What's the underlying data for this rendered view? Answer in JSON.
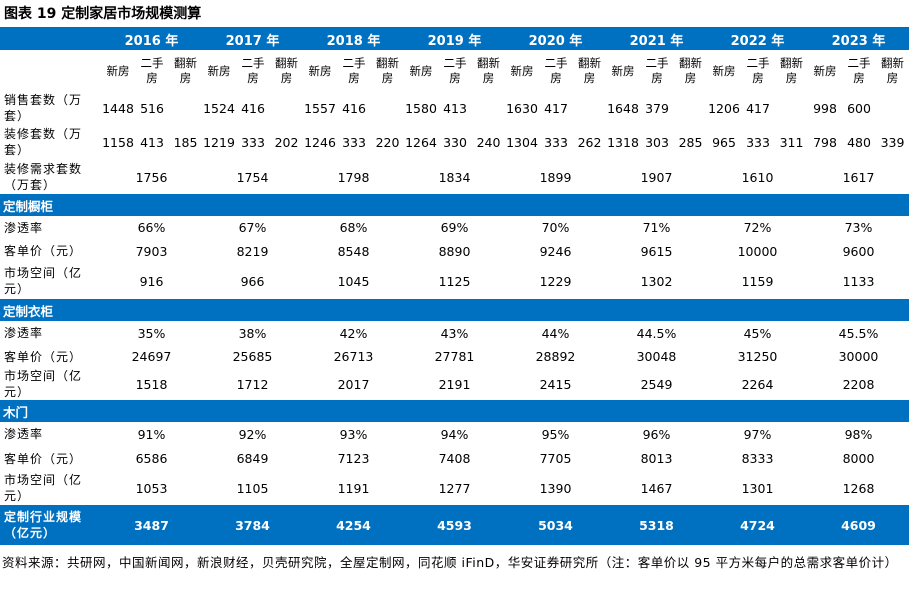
{
  "title": "图表 19 定制家居市场规模测算",
  "years": [
    "2016 年",
    "2017 年",
    "2018 年",
    "2019 年",
    "2020 年",
    "2021 年",
    "2022 年",
    "2023 年"
  ],
  "sub_headers": [
    "新房",
    "二手房",
    "翻新房"
  ],
  "rows": {
    "sales": {
      "label": "销售套数（万套）",
      "values": [
        [
          "1448",
          "516",
          ""
        ],
        [
          "1524",
          "416",
          ""
        ],
        [
          "1557",
          "416",
          ""
        ],
        [
          "1580",
          "413",
          ""
        ],
        [
          "1630",
          "417",
          ""
        ],
        [
          "1648",
          "379",
          ""
        ],
        [
          "1206",
          "417",
          ""
        ],
        [
          "998",
          "600",
          ""
        ]
      ]
    },
    "decor": {
      "label": "装修套数（万套）",
      "values": [
        [
          "1158",
          "413",
          "185"
        ],
        [
          "1219",
          "333",
          "202"
        ],
        [
          "1246",
          "333",
          "220"
        ],
        [
          "1264",
          "330",
          "240"
        ],
        [
          "1304",
          "333",
          "262"
        ],
        [
          "1318",
          "303",
          "285"
        ],
        [
          "965",
          "333",
          "311"
        ],
        [
          "798",
          "480",
          "339"
        ]
      ]
    },
    "demand": {
      "label": "装修需求套数（万套）",
      "values": [
        "1756",
        "1754",
        "1798",
        "1834",
        "1899",
        "1907",
        "1610",
        "1617"
      ]
    }
  },
  "sections": [
    {
      "name": "定制橱柜",
      "rows": [
        {
          "label": "渗透率",
          "values": [
            "66%",
            "67%",
            "68%",
            "69%",
            "70%",
            "71%",
            "72%",
            "73%"
          ]
        },
        {
          "label": "客单价（元）",
          "values": [
            "7903",
            "8219",
            "8548",
            "8890",
            "9246",
            "9615",
            "10000",
            "9600"
          ]
        },
        {
          "label": "市场空间（亿元）",
          "values": [
            "916",
            "966",
            "1045",
            "1125",
            "1229",
            "1302",
            "1159",
            "1133"
          ]
        }
      ]
    },
    {
      "name": "定制衣柜",
      "rows": [
        {
          "label": "渗透率",
          "values": [
            "35%",
            "38%",
            "42%",
            "43%",
            "44%",
            "44.5%",
            "45%",
            "45.5%"
          ]
        },
        {
          "label": "客单价（元）",
          "values": [
            "24697",
            "25685",
            "26713",
            "27781",
            "28892",
            "30048",
            "31250",
            "30000"
          ]
        },
        {
          "label": "市场空间（亿元）",
          "values": [
            "1518",
            "1712",
            "2017",
            "2191",
            "2415",
            "2549",
            "2264",
            "2208"
          ]
        }
      ]
    },
    {
      "name": "木门",
      "rows": [
        {
          "label": "渗透率",
          "values": [
            "91%",
            "92%",
            "93%",
            "94%",
            "95%",
            "96%",
            "97%",
            "98%"
          ]
        },
        {
          "label": "客单价（元）",
          "values": [
            "6586",
            "6849",
            "7123",
            "7408",
            "7705",
            "8013",
            "8333",
            "8000"
          ]
        },
        {
          "label": "市场空间（亿元）",
          "values": [
            "1053",
            "1105",
            "1191",
            "1277",
            "1390",
            "1467",
            "1301",
            "1268"
          ]
        }
      ]
    }
  ],
  "total": {
    "label": "定制行业规模（亿元）",
    "values": [
      "3487",
      "3784",
      "4254",
      "4593",
      "5034",
      "5318",
      "4724",
      "4609"
    ]
  },
  "source": "资料来源：共研网，中国新闻网，新浪财经，贝壳研究院，全屋定制网，同花顺 iFinD，华安证券研究所（注：客单价以 95 平方米每户的总需求客单价计）"
}
